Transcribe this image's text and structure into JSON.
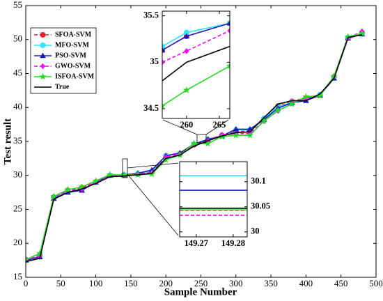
{
  "chart_data": [
    {
      "type": "line",
      "xlabel": "Sample Number",
      "ylabel": "Test result",
      "xlim": [
        0,
        500
      ],
      "ylim": [
        15,
        55
      ],
      "xticks": [
        0,
        50,
        100,
        150,
        200,
        250,
        300,
        350,
        400,
        450,
        500
      ],
      "yticks": [
        15,
        20,
        25,
        30,
        35,
        40,
        45,
        50,
        55
      ],
      "legend": "upper left",
      "x": [
        0,
        20,
        40,
        60,
        80,
        100,
        120,
        140,
        160,
        180,
        200,
        220,
        240,
        260,
        280,
        300,
        320,
        340,
        360,
        380,
        400,
        420,
        440,
        460,
        480
      ],
      "series": [
        {
          "name": "SFOA-SVM",
          "color": "#e8232a",
          "style": "dashed",
          "marker": "circle",
          "values": [
            17.6,
            18.2,
            26.8,
            27.8,
            28.2,
            29.0,
            30.0,
            30.1,
            30.2,
            30.5,
            32.9,
            33.2,
            34.5,
            35.3,
            35.9,
            36.4,
            36.6,
            38.3,
            40.2,
            40.9,
            41.4,
            41.8,
            44.5,
            50.2,
            51.0
          ]
        },
        {
          "name": "MFO-SVM",
          "color": "#33e0ff",
          "style": "solid",
          "marker": "circle",
          "values": [
            17.5,
            18.0,
            26.7,
            27.6,
            27.9,
            29.0,
            30.0,
            30.1,
            30.3,
            30.6,
            32.9,
            33.2,
            34.6,
            35.3,
            35.8,
            36.7,
            36.7,
            38.4,
            40.1,
            40.8,
            41.2,
            41.9,
            44.4,
            50.3,
            50.9
          ]
        },
        {
          "name": "PSO-SVM",
          "color": "#1a1ab8",
          "style": "solid",
          "marker": "triangle",
          "values": [
            17.5,
            18.0,
            26.6,
            27.5,
            27.8,
            29.0,
            30.0,
            30.07,
            30.3,
            30.8,
            32.9,
            33.3,
            34.6,
            35.3,
            35.8,
            36.8,
            36.8,
            38.2,
            39.9,
            40.7,
            41.0,
            41.8,
            44.3,
            50.2,
            50.8
          ]
        },
        {
          "name": "GWO-SVM",
          "color": "#ff00ff",
          "style": "dashed",
          "marker": "diamond",
          "values": [
            17.6,
            18.1,
            26.8,
            27.7,
            28.0,
            29.0,
            30.0,
            30.03,
            30.2,
            30.4,
            32.7,
            33.1,
            34.5,
            35.1,
            36.0,
            36.1,
            36.2,
            38.0,
            39.5,
            40.6,
            41.4,
            41.8,
            44.5,
            50.2,
            51.2
          ]
        },
        {
          "name": "ISFOA-SVM",
          "color": "#22dd22",
          "style": "solid",
          "marker": "star",
          "values": [
            17.6,
            18.5,
            26.9,
            27.9,
            28.3,
            29.2,
            30.1,
            30.04,
            30.1,
            30.2,
            32.3,
            33.0,
            34.7,
            34.7,
            35.7,
            35.9,
            35.9,
            38.0,
            39.6,
            40.5,
            41.6,
            41.7,
            44.6,
            50.4,
            50.9
          ]
        },
        {
          "name": "True",
          "color": "#000000",
          "style": "solid",
          "marker": "none",
          "values": [
            17.3,
            17.8,
            26.5,
            27.5,
            28.0,
            28.8,
            29.8,
            29.9,
            30.1,
            30.3,
            32.5,
            33.0,
            34.3,
            35.1,
            35.8,
            36.3,
            36.4,
            38.5,
            40.5,
            41.0,
            41.0,
            42.0,
            44.3,
            50.3,
            50.7
          ]
        }
      ]
    },
    {
      "type": "line",
      "xlim": [
        256.3,
        266.6
      ],
      "ylim": [
        34.395,
        35.55
      ],
      "xticks": [
        260,
        265
      ],
      "yticks": [
        34.5,
        35,
        35.5
      ],
      "x": [
        256.3,
        260,
        266.6
      ],
      "series": [
        {
          "color": "#e8232a",
          "style": "dashed",
          "marker": "circle",
          "values": [
            35.13,
            35.28,
            35.42
          ]
        },
        {
          "color": "#33e0ff",
          "style": "solid",
          "marker": "circle",
          "values": [
            35.17,
            35.32,
            35.42
          ]
        },
        {
          "color": "#1a1ab8",
          "style": "solid",
          "marker": "triangle",
          "values": [
            35.13,
            35.28,
            35.42
          ]
        },
        {
          "color": "#ff00ff",
          "style": "dashed",
          "marker": "diamond",
          "values": [
            35.0,
            35.12,
            35.34
          ]
        },
        {
          "color": "#22dd22",
          "style": "solid",
          "marker": "star",
          "values": [
            34.53,
            34.7,
            34.96
          ]
        },
        {
          "color": "#000000",
          "style": "solid",
          "marker": "none",
          "values": [
            34.8,
            35.0,
            35.17
          ]
        }
      ]
    },
    {
      "type": "line",
      "xlim": [
        149.2655,
        149.2838
      ],
      "ylim": [
        29.99,
        30.14
      ],
      "xticks": [
        149.27,
        149.28
      ],
      "yticks": [
        30,
        30.05,
        30.1
      ],
      "x": [
        149.2655,
        149.2838
      ],
      "series": [
        {
          "color": "#e8232a",
          "style": "dashed",
          "marker": "none",
          "values": [
            30.043,
            30.043
          ]
        },
        {
          "color": "#33e0ff",
          "style": "solid",
          "marker": "none",
          "values": [
            30.112,
            30.112
          ]
        },
        {
          "color": "#1a1ab8",
          "style": "solid",
          "marker": "none",
          "values": [
            30.083,
            30.083
          ]
        },
        {
          "color": "#ff00ff",
          "style": "dashed",
          "marker": "none",
          "values": [
            30.033,
            30.033
          ]
        },
        {
          "color": "#22dd22",
          "style": "solid",
          "marker": "none",
          "values": [
            30.044,
            30.044
          ]
        },
        {
          "color": "#000000",
          "style": "solid",
          "marker": "none",
          "values": [
            30.047,
            30.047
          ]
        }
      ]
    }
  ]
}
